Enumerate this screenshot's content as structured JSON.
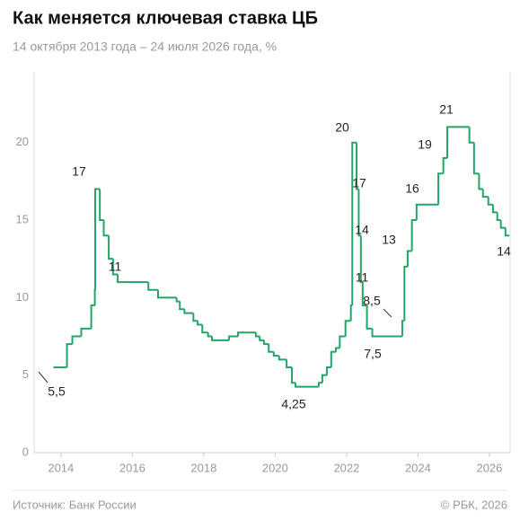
{
  "chart_data": {
    "type": "step-line",
    "title": "Как меняется ключевая ставка ЦБ",
    "subtitle": "14 октября 2013 года – 24 июля 2026 года, %",
    "source": "Источник: Банк России",
    "credit": "© РБК, 2026",
    "color": "#22a567",
    "xlim": [
      2013.25,
      2026.58
    ],
    "xticks": [
      2014,
      2016,
      2018,
      2020,
      2022,
      2024,
      2026
    ],
    "ylim": [
      0,
      24.5
    ],
    "yticks": [
      0,
      5,
      10,
      15,
      20
    ],
    "x": [
      2013.79,
      2014.17,
      2014.32,
      2014.57,
      2014.85,
      2014.95,
      2014.96,
      2015.09,
      2015.2,
      2015.34,
      2015.46,
      2015.59,
      2016.45,
      2016.72,
      2017.24,
      2017.33,
      2017.46,
      2017.71,
      2017.83,
      2017.96,
      2018.12,
      2018.23,
      2018.71,
      2018.96,
      2019.46,
      2019.57,
      2019.69,
      2019.82,
      2019.96,
      2020.11,
      2020.32,
      2020.47,
      2020.57,
      2021.22,
      2021.32,
      2021.45,
      2021.57,
      2021.7,
      2021.81,
      2021.97,
      2022.12,
      2022.16,
      2022.28,
      2022.34,
      2022.4,
      2022.45,
      2022.57,
      2022.72,
      2023.56,
      2023.62,
      2023.71,
      2023.83,
      2023.96,
      2024.57,
      2024.71,
      2024.82,
      2025.44,
      2025.57,
      2025.71,
      2025.82,
      2025.97,
      2026.1,
      2026.22,
      2026.32,
      2026.45,
      2026.56
    ],
    "series": [
      {
        "values": [
          5.5,
          7,
          7.5,
          8,
          9.5,
          10.5,
          17,
          15,
          14,
          12.5,
          11.5,
          11,
          10.5,
          10,
          9.75,
          9.25,
          9,
          8.5,
          8.25,
          7.75,
          7.5,
          7.25,
          7.5,
          7.75,
          7.5,
          7.25,
          7,
          6.5,
          6.25,
          6,
          5.5,
          4.5,
          4.25,
          4.5,
          5,
          5.5,
          6.5,
          6.75,
          7.5,
          8.5,
          9.5,
          20,
          17,
          14,
          11,
          9.5,
          8,
          7.5,
          8.5,
          12,
          13,
          15,
          16,
          18,
          19,
          21,
          20,
          18,
          17,
          16.5,
          16,
          15.5,
          15,
          14.5,
          14,
          14
        ]
      }
    ],
    "annotations": [
      {
        "value": 5.5,
        "label": "5,5"
      },
      {
        "value": 17
      },
      {
        "value": 11
      },
      {
        "value": 4.25,
        "label": "4,25"
      },
      {
        "value": 20
      },
      {
        "value": 17
      },
      {
        "value": 14
      },
      {
        "value": 11
      },
      {
        "value": 7.5,
        "label": "7,5"
      },
      {
        "value": 8.5,
        "label": "8,5"
      },
      {
        "value": 13
      },
      {
        "value": 16
      },
      {
        "value": 19
      },
      {
        "value": 21
      },
      {
        "value": 14
      }
    ]
  }
}
